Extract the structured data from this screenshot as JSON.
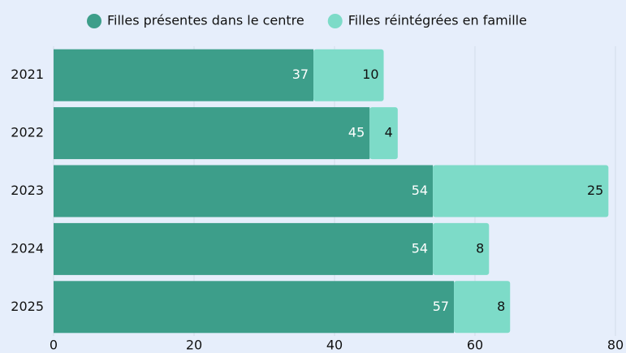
{
  "chart_data": {
    "type": "stacked-barh",
    "categories": [
      "2021",
      "2022",
      "2023",
      "2024",
      "2025"
    ],
    "series": [
      {
        "name": "Filles présentes dans le centre",
        "color": "#3d9e8a",
        "values": [
          37,
          45,
          54,
          54,
          57
        ]
      },
      {
        "name": "Filles réintégrées en famille",
        "color": "#7ddbc8",
        "values": [
          10,
          4,
          25,
          8,
          8
        ]
      }
    ],
    "xlim": [
      0,
      80
    ],
    "xticks": [
      0,
      20,
      40,
      60,
      80
    ],
    "grid": true,
    "legend": "top"
  }
}
